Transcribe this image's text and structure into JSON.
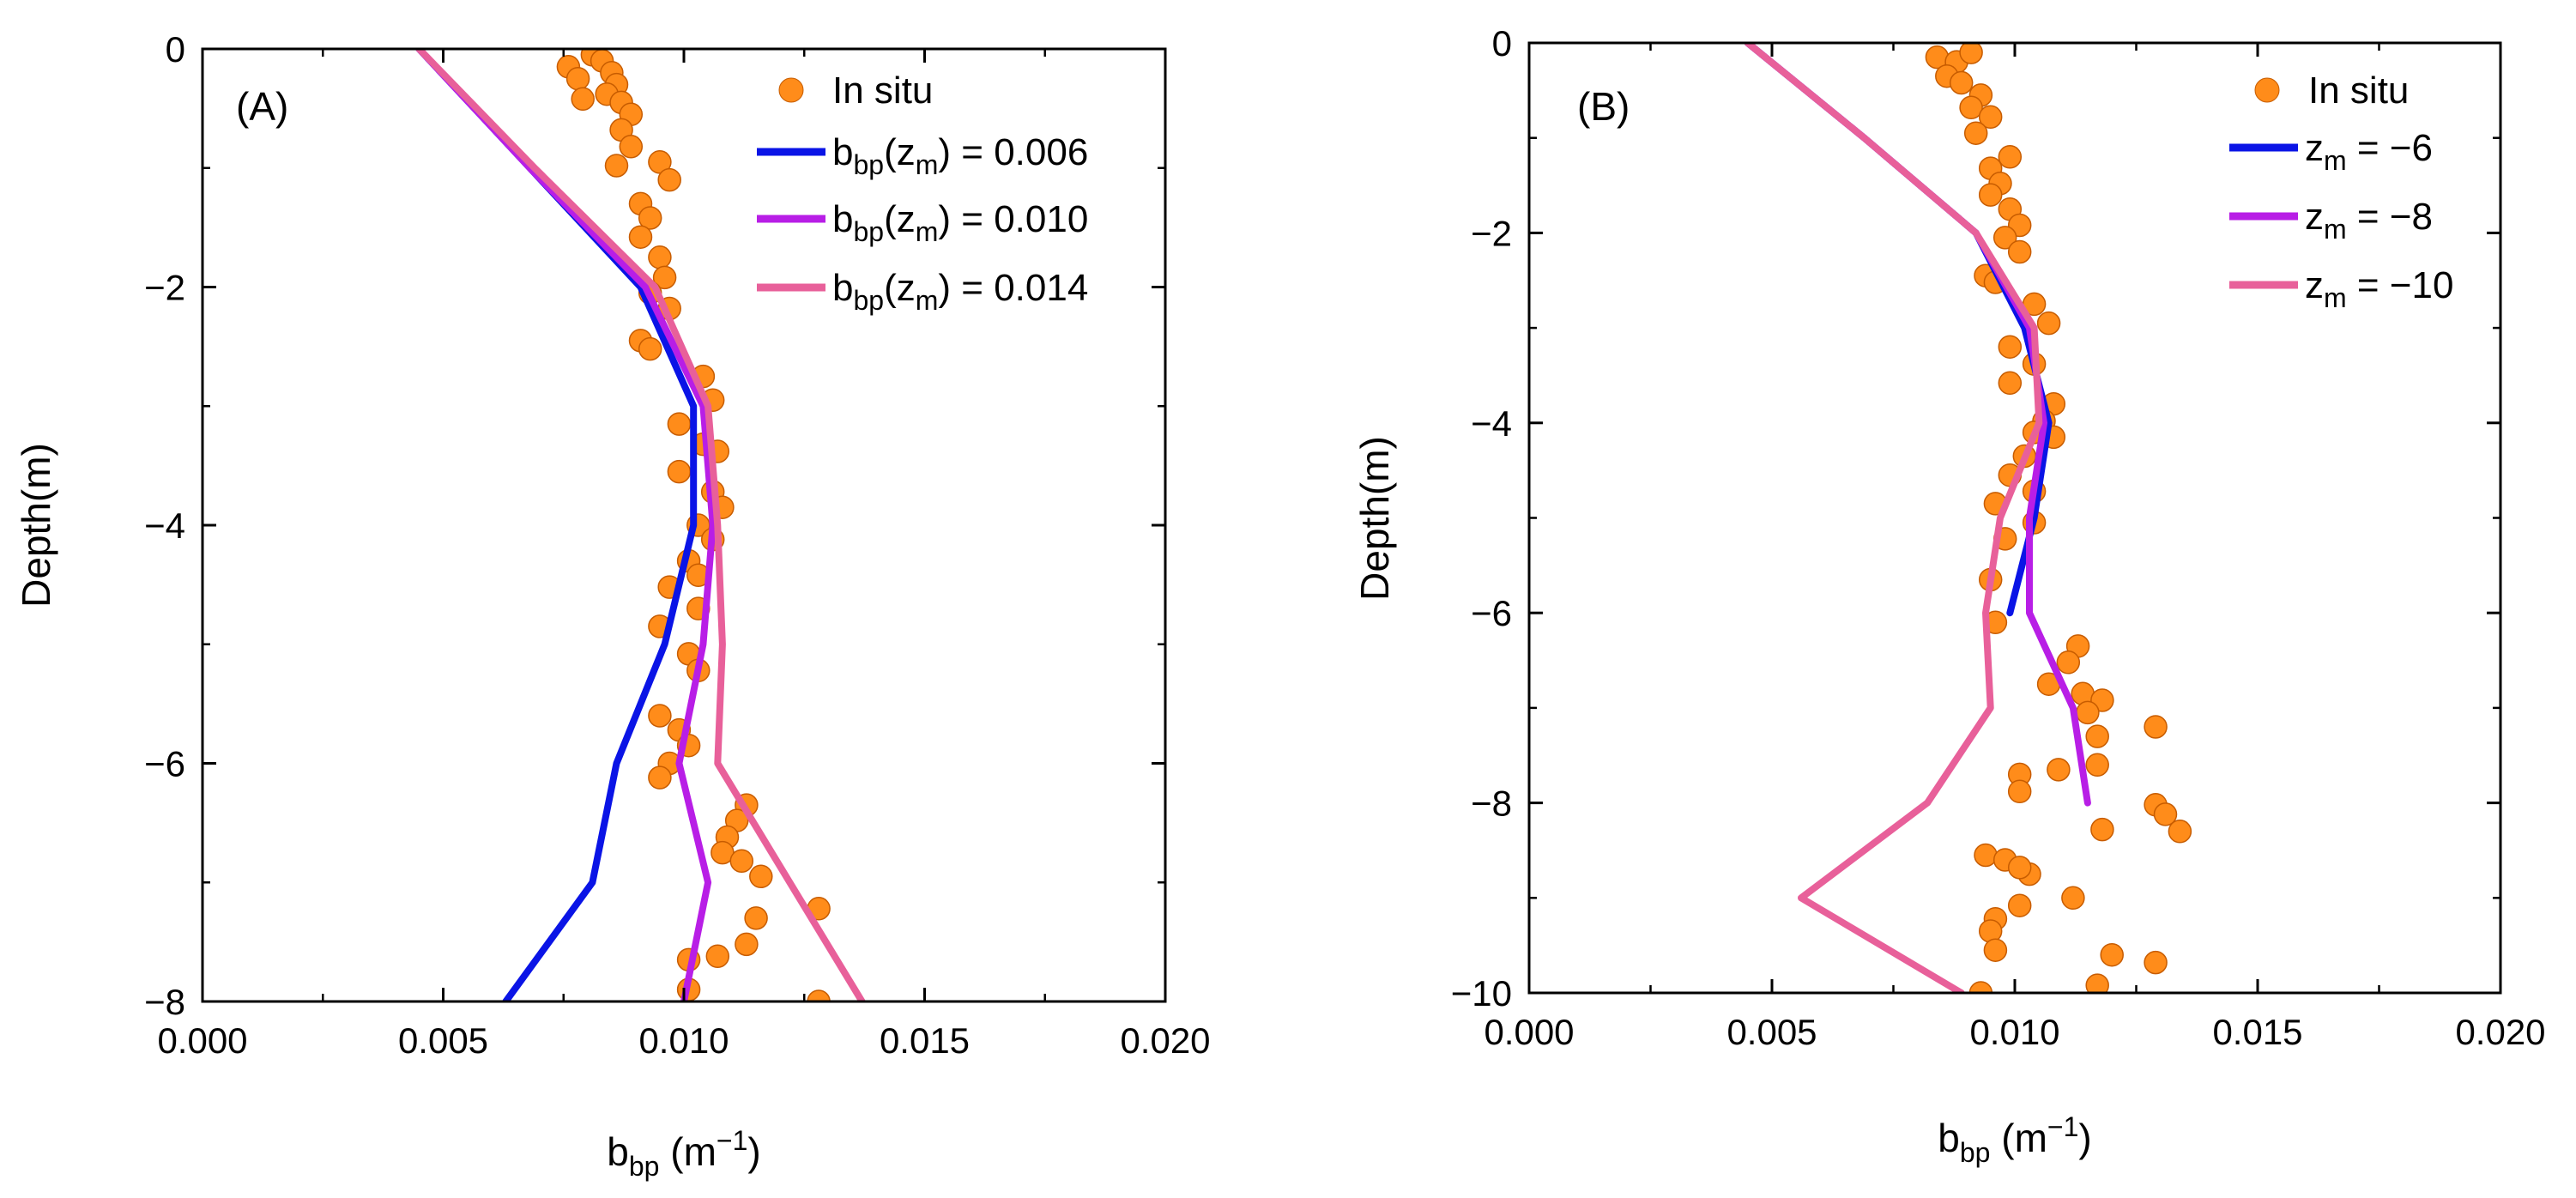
{
  "colors": {
    "insitu_fill": "#ff8c1a",
    "insitu_stroke": "#c75c00",
    "blue": "#0a14e6",
    "purple": "#b81ee6",
    "pink": "#e8609a"
  },
  "chart_data": [
    {
      "type": "line",
      "panel_label": "(A)",
      "title": "",
      "xlabel_main": "b",
      "xlabel_sub": "bp",
      "xlabel_unit_pre": " (m",
      "xlabel_unit_sup": "−1",
      "xlabel_unit_post": ")",
      "ylabel": "Depth(m)",
      "xlim": [
        0,
        0.02
      ],
      "ylim": [
        -8,
        0
      ],
      "xticks": [
        0.0,
        0.005,
        0.01,
        0.015,
        0.02
      ],
      "xtick_labels": [
        "0.000",
        "0.005",
        "0.010",
        "0.015",
        "0.020"
      ],
      "yticks": [
        0,
        -2,
        -4,
        -6,
        -8
      ],
      "ytick_labels": [
        "0",
        "−2",
        "−4",
        "−6",
        "−8"
      ],
      "legend_position": "top-right",
      "scatter": {
        "name": "In situ",
        "points": [
          [
            0.0076,
            -0.15
          ],
          [
            0.0078,
            -0.25
          ],
          [
            0.0081,
            -0.05
          ],
          [
            0.0083,
            -0.1
          ],
          [
            0.0085,
            -0.2
          ],
          [
            0.0086,
            -0.3
          ],
          [
            0.0084,
            -0.38
          ],
          [
            0.0079,
            -0.42
          ],
          [
            0.0087,
            -0.45
          ],
          [
            0.0089,
            -0.55
          ],
          [
            0.0087,
            -0.68
          ],
          [
            0.0089,
            -0.82
          ],
          [
            0.0086,
            -0.98
          ],
          [
            0.0095,
            -0.95
          ],
          [
            0.0097,
            -1.1
          ],
          [
            0.0091,
            -1.3
          ],
          [
            0.0093,
            -1.42
          ],
          [
            0.0091,
            -1.58
          ],
          [
            0.0095,
            -1.75
          ],
          [
            0.0096,
            -1.92
          ],
          [
            0.0093,
            -2.05
          ],
          [
            0.0097,
            -2.18
          ],
          [
            0.0091,
            -2.45
          ],
          [
            0.0093,
            -2.52
          ],
          [
            0.0104,
            -2.75
          ],
          [
            0.0106,
            -2.95
          ],
          [
            0.0099,
            -3.15
          ],
          [
            0.0104,
            -3.32
          ],
          [
            0.0107,
            -3.38
          ],
          [
            0.0099,
            -3.55
          ],
          [
            0.0106,
            -3.72
          ],
          [
            0.0108,
            -3.85
          ],
          [
            0.0103,
            -4.0
          ],
          [
            0.0106,
            -4.12
          ],
          [
            0.0101,
            -4.3
          ],
          [
            0.0103,
            -4.42
          ],
          [
            0.0097,
            -4.52
          ],
          [
            0.0103,
            -4.7
          ],
          [
            0.0095,
            -4.85
          ],
          [
            0.0101,
            -5.08
          ],
          [
            0.0103,
            -5.22
          ],
          [
            0.0095,
            -5.6
          ],
          [
            0.0099,
            -5.72
          ],
          [
            0.0101,
            -5.85
          ],
          [
            0.0097,
            -6.0
          ],
          [
            0.0095,
            -6.12
          ],
          [
            0.0113,
            -6.35
          ],
          [
            0.0111,
            -6.48
          ],
          [
            0.0109,
            -6.62
          ],
          [
            0.0108,
            -6.75
          ],
          [
            0.0112,
            -6.82
          ],
          [
            0.0116,
            -6.95
          ],
          [
            0.0128,
            -7.22
          ],
          [
            0.0115,
            -7.3
          ],
          [
            0.0113,
            -7.52
          ],
          [
            0.0107,
            -7.62
          ],
          [
            0.0101,
            -7.65
          ],
          [
            0.0101,
            -7.9
          ],
          [
            0.0128,
            -8.0
          ]
        ]
      },
      "series": [
        {
          "name_main": "b",
          "name_sub": "bp",
          "name_tail": "(z",
          "name_tail_sub": "m",
          "name_value": ") = 0.006",
          "color_key": "blue",
          "points": [
            [
              0.0045,
              0
            ],
            [
              0.0068,
              -1.0
            ],
            [
              0.0091,
              -2.0
            ],
            [
              0.0102,
              -3.0
            ],
            [
              0.0102,
              -4.0
            ],
            [
              0.0096,
              -5.0
            ],
            [
              0.0086,
              -6.0
            ],
            [
              0.0081,
              -7.0
            ],
            [
              0.0063,
              -8.0
            ]
          ]
        },
        {
          "name_main": "b",
          "name_sub": "bp",
          "name_tail": "(z",
          "name_tail_sub": "m",
          "name_value": ") = 0.010",
          "color_key": "purple",
          "points": [
            [
              0.0045,
              0
            ],
            [
              0.0068,
              -1.0
            ],
            [
              0.0092,
              -2.0
            ],
            [
              0.0104,
              -3.0
            ],
            [
              0.0106,
              -4.0
            ],
            [
              0.0104,
              -5.0
            ],
            [
              0.0099,
              -6.0
            ],
            [
              0.0105,
              -7.0
            ],
            [
              0.01,
              -8.0
            ]
          ]
        },
        {
          "name_main": "b",
          "name_sub": "bp",
          "name_tail": "(z",
          "name_tail_sub": "m",
          "name_value": ") = 0.014",
          "color_key": "pink",
          "points": [
            [
              0.0045,
              0
            ],
            [
              0.0069,
              -1.0
            ],
            [
              0.0094,
              -2.0
            ],
            [
              0.0105,
              -3.0
            ],
            [
              0.0107,
              -4.0
            ],
            [
              0.0108,
              -5.0
            ],
            [
              0.0107,
              -6.0
            ],
            [
              0.0122,
              -7.0
            ],
            [
              0.0137,
              -8.0
            ]
          ]
        }
      ]
    },
    {
      "type": "line",
      "panel_label": "(B)",
      "title": "",
      "xlabel_main": "b",
      "xlabel_sub": "bp",
      "xlabel_unit_pre": " (m",
      "xlabel_unit_sup": "−1",
      "xlabel_unit_post": ")",
      "ylabel": "Depth(m)",
      "xlim": [
        0,
        0.02
      ],
      "ylim": [
        -10,
        0
      ],
      "xticks": [
        0.0,
        0.005,
        0.01,
        0.015,
        0.02
      ],
      "xtick_labels": [
        "0.000",
        "0.005",
        "0.010",
        "0.015",
        "0.020"
      ],
      "yticks": [
        0,
        -2,
        -4,
        -6,
        -8,
        -10
      ],
      "ytick_labels": [
        "0",
        "−2",
        "−4",
        "−6",
        "−8",
        "−10"
      ],
      "legend_position": "top-right",
      "scatter": {
        "name": "In situ",
        "points": [
          [
            0.0084,
            -0.15
          ],
          [
            0.0088,
            -0.2
          ],
          [
            0.0091,
            -0.1
          ],
          [
            0.0086,
            -0.35
          ],
          [
            0.0089,
            -0.42
          ],
          [
            0.0093,
            -0.55
          ],
          [
            0.0091,
            -0.68
          ],
          [
            0.0095,
            -0.78
          ],
          [
            0.0092,
            -0.95
          ],
          [
            0.0099,
            -1.2
          ],
          [
            0.0095,
            -1.32
          ],
          [
            0.0097,
            -1.48
          ],
          [
            0.0095,
            -1.6
          ],
          [
            0.0099,
            -1.75
          ],
          [
            0.0101,
            -1.92
          ],
          [
            0.0098,
            -2.05
          ],
          [
            0.0101,
            -2.2
          ],
          [
            0.0094,
            -2.45
          ],
          [
            0.0096,
            -2.52
          ],
          [
            0.0104,
            -2.75
          ],
          [
            0.0107,
            -2.95
          ],
          [
            0.0099,
            -3.2
          ],
          [
            0.0104,
            -3.38
          ],
          [
            0.0099,
            -3.58
          ],
          [
            0.0108,
            -3.8
          ],
          [
            0.0106,
            -3.98
          ],
          [
            0.0104,
            -4.1
          ],
          [
            0.0108,
            -4.15
          ],
          [
            0.0102,
            -4.35
          ],
          [
            0.0099,
            -4.55
          ],
          [
            0.0104,
            -4.72
          ],
          [
            0.0096,
            -4.85
          ],
          [
            0.0104,
            -5.05
          ],
          [
            0.0098,
            -5.22
          ],
          [
            0.0095,
            -5.65
          ],
          [
            0.0096,
            -6.1
          ],
          [
            0.0113,
            -6.35
          ],
          [
            0.0111,
            -6.52
          ],
          [
            0.0107,
            -6.75
          ],
          [
            0.0114,
            -6.85
          ],
          [
            0.0118,
            -6.92
          ],
          [
            0.0115,
            -7.05
          ],
          [
            0.0129,
            -7.2
          ],
          [
            0.0117,
            -7.3
          ],
          [
            0.0117,
            -7.6
          ],
          [
            0.0109,
            -7.65
          ],
          [
            0.0101,
            -7.7
          ],
          [
            0.0101,
            -7.88
          ],
          [
            0.0129,
            -8.02
          ],
          [
            0.0131,
            -8.12
          ],
          [
            0.0118,
            -8.28
          ],
          [
            0.0134,
            -8.3
          ],
          [
            0.0094,
            -8.55
          ],
          [
            0.0098,
            -8.6
          ],
          [
            0.0103,
            -8.75
          ],
          [
            0.0101,
            -8.68
          ],
          [
            0.0112,
            -9.0
          ],
          [
            0.0101,
            -9.08
          ],
          [
            0.0096,
            -9.22
          ],
          [
            0.0095,
            -9.35
          ],
          [
            0.0096,
            -9.55
          ],
          [
            0.012,
            -9.6
          ],
          [
            0.0129,
            -9.68
          ],
          [
            0.0117,
            -9.92
          ],
          [
            0.0093,
            -10.0
          ]
        ]
      },
      "series": [
        {
          "name_main": "z",
          "name_sub": "m",
          "name_tail": "",
          "name_tail_sub": "",
          "name_value": " =  −6",
          "color_key": "blue",
          "points": [
            [
              0.0045,
              0
            ],
            [
              0.0069,
              -1.0
            ],
            [
              0.0092,
              -2.0
            ],
            [
              0.0102,
              -3.0
            ],
            [
              0.0107,
              -4.0
            ],
            [
              0.0104,
              -5.0
            ],
            [
              0.0099,
              -6.0
            ]
          ]
        },
        {
          "name_main": "z",
          "name_sub": "m",
          "name_tail": "",
          "name_tail_sub": "",
          "name_value": " =  −8",
          "color_key": "purple",
          "points": [
            [
              0.0045,
              0
            ],
            [
              0.0069,
              -1.0
            ],
            [
              0.0092,
              -2.0
            ],
            [
              0.0103,
              -3.0
            ],
            [
              0.0106,
              -4.0
            ],
            [
              0.0103,
              -5.0
            ],
            [
              0.0103,
              -6.0
            ],
            [
              0.0112,
              -7.0
            ],
            [
              0.0115,
              -8.0
            ]
          ]
        },
        {
          "name_main": "z",
          "name_sub": "m",
          "name_tail": "",
          "name_tail_sub": "",
          "name_value": " = −10",
          "color_key": "pink",
          "points": [
            [
              0.0045,
              0
            ],
            [
              0.0069,
              -1.0
            ],
            [
              0.0092,
              -2.0
            ],
            [
              0.0104,
              -3.0
            ],
            [
              0.0105,
              -4.0
            ],
            [
              0.0097,
              -5.0
            ],
            [
              0.0094,
              -6.0
            ],
            [
              0.0095,
              -7.0
            ],
            [
              0.0082,
              -8.0
            ],
            [
              0.0056,
              -9.0
            ],
            [
              0.0089,
              -10.0
            ]
          ]
        }
      ]
    }
  ]
}
